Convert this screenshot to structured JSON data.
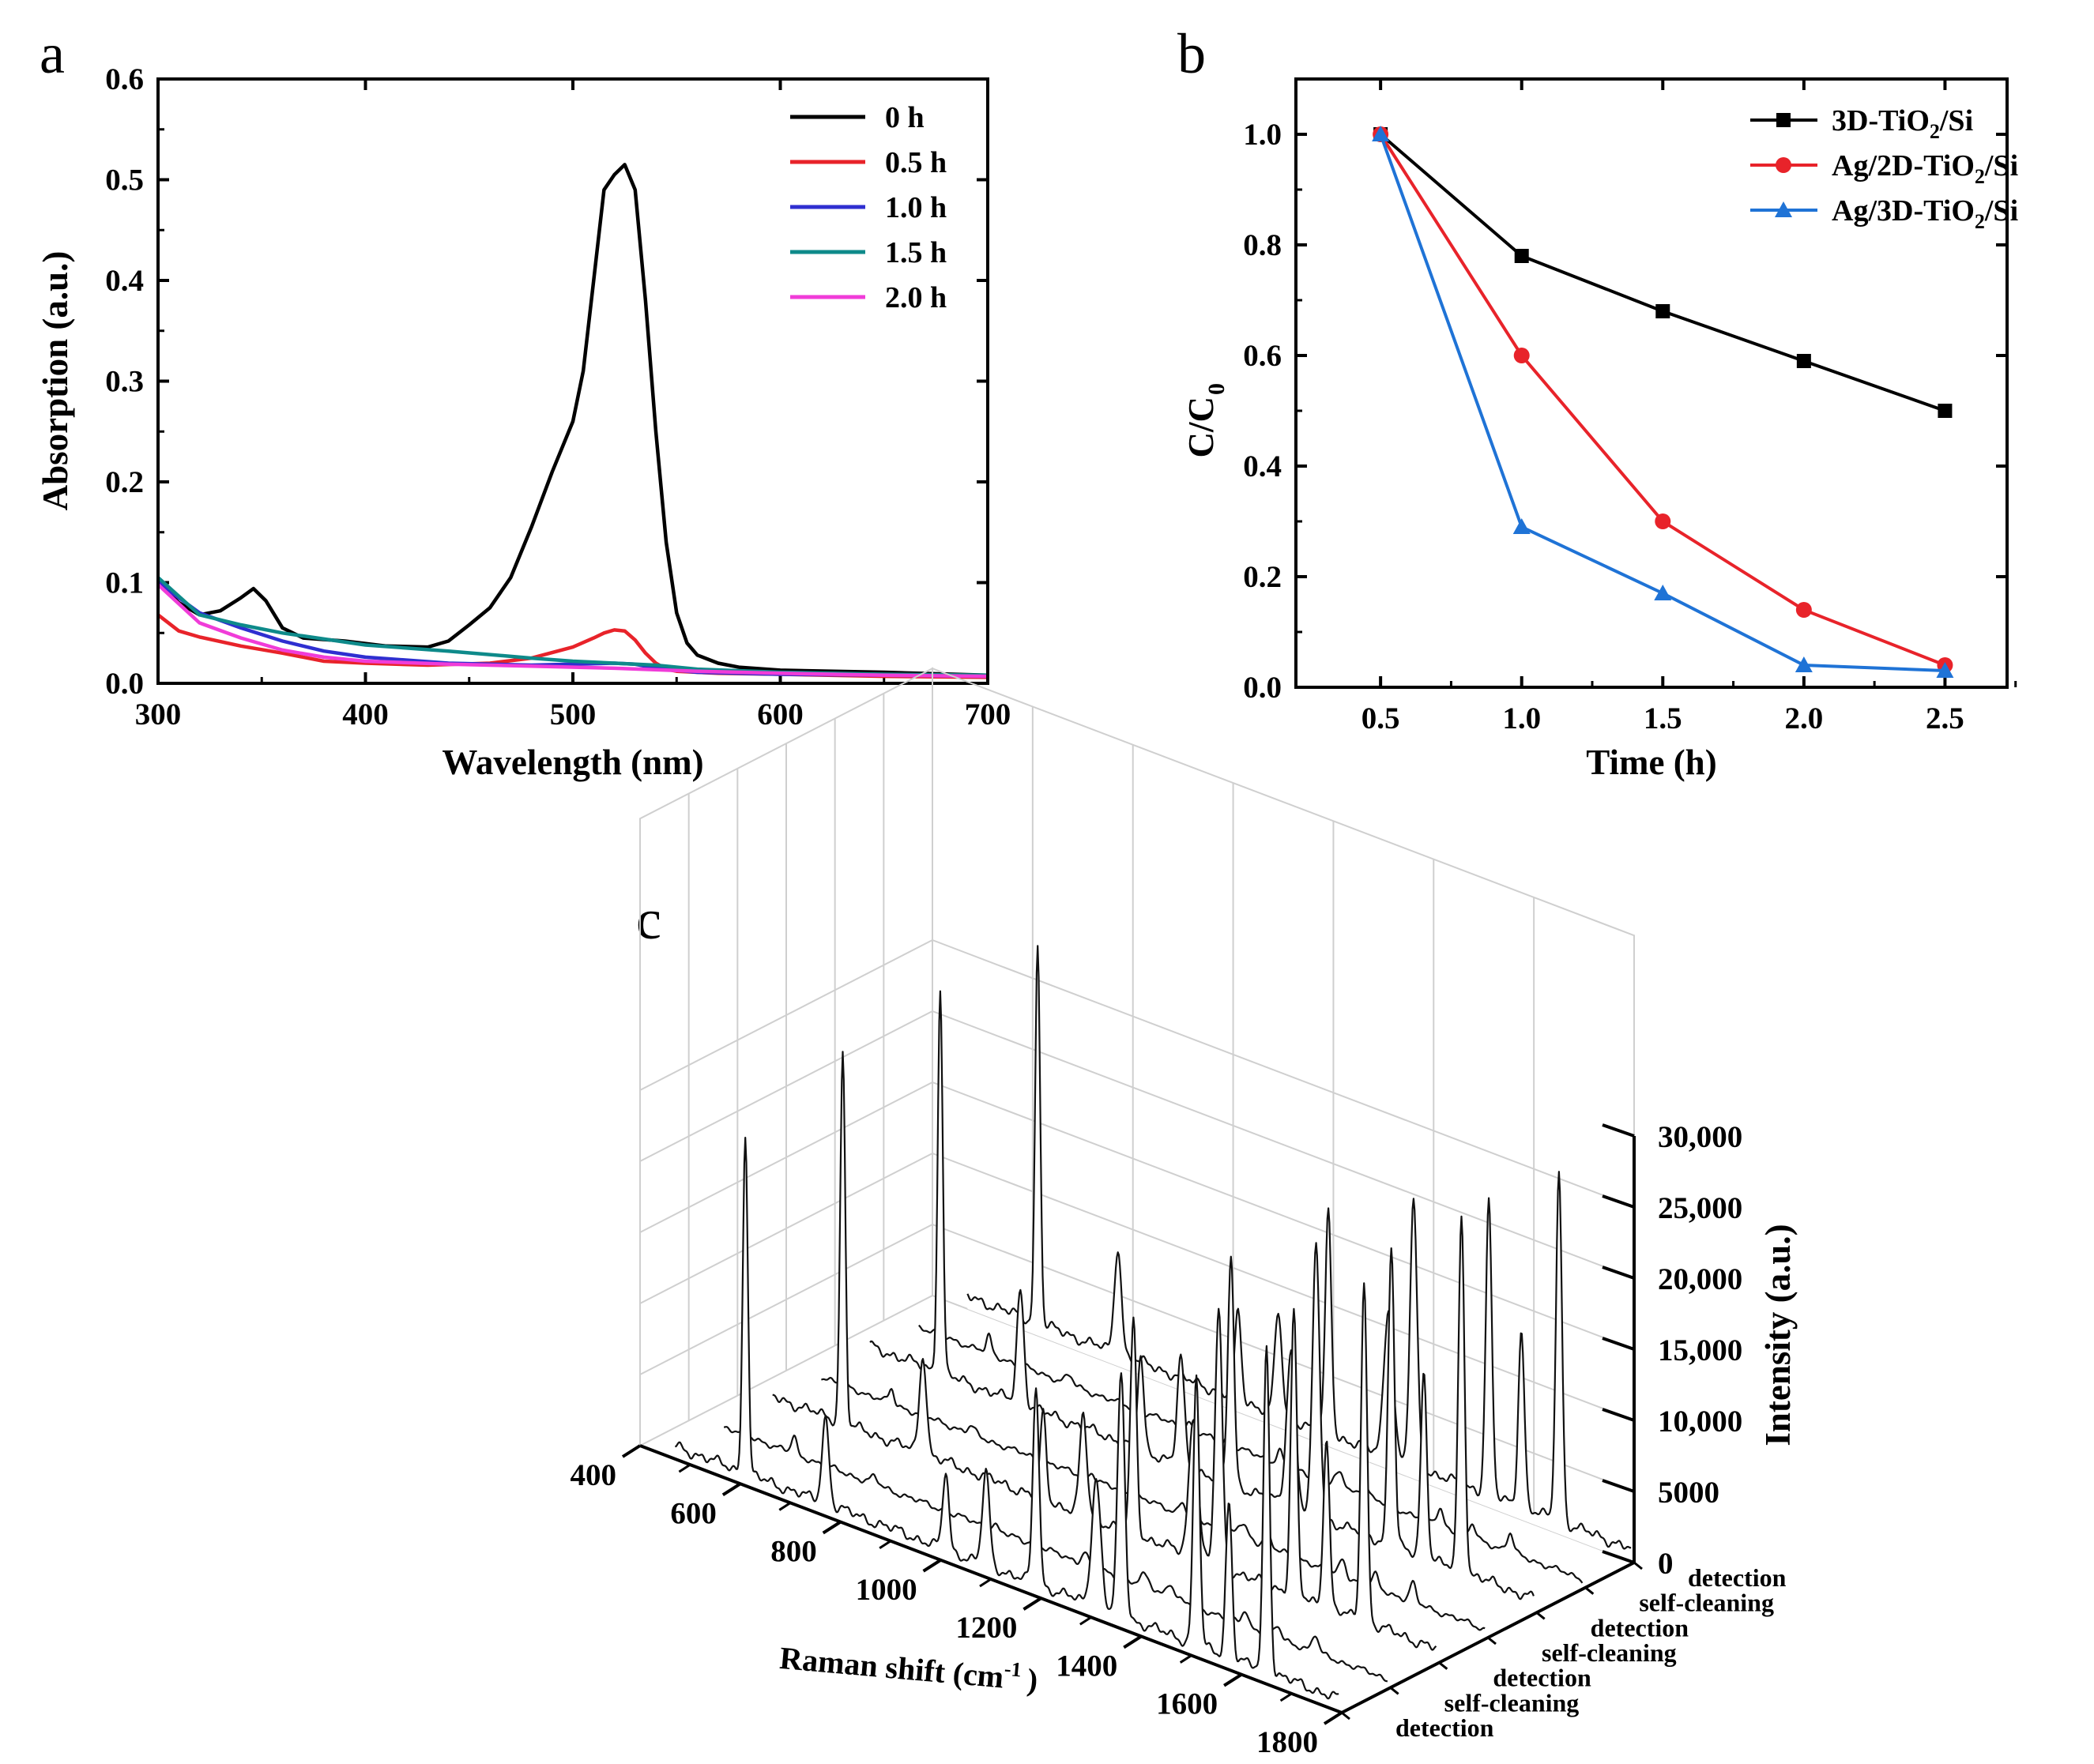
{
  "charts": {
    "a": {
      "letter": "a",
      "chart_data": {
        "type": "line",
        "title": "",
        "xlabel": "Wavelength (nm)",
        "ylabel": "Absorption (a.u.)",
        "xlim": [
          300,
          700
        ],
        "ylim": [
          0,
          0.6
        ],
        "xticks": [
          "300",
          "400",
          "500",
          "600",
          "700"
        ],
        "yticks": [
          "0.0",
          "0.1",
          "0.2",
          "0.3",
          "0.4",
          "0.5",
          "0.6"
        ],
        "legend_position": "top-right",
        "series": [
          {
            "name": "0 h",
            "color": "#000000",
            "x": [
              300,
              310,
              320,
              330,
              340,
              346,
              352,
              360,
              370,
              390,
              410,
              430,
              440,
              450,
              460,
              470,
              480,
              490,
              500,
              505,
              510,
              515,
              520,
              525,
              530,
              535,
              540,
              545,
              550,
              555,
              560,
              570,
              580,
              600,
              650,
              700
            ],
            "y": [
              0.1,
              0.08,
              0.068,
              0.072,
              0.085,
              0.094,
              0.082,
              0.055,
              0.045,
              0.042,
              0.037,
              0.036,
              0.042,
              0.058,
              0.075,
              0.105,
              0.155,
              0.21,
              0.26,
              0.31,
              0.4,
              0.49,
              0.505,
              0.515,
              0.49,
              0.38,
              0.25,
              0.14,
              0.07,
              0.04,
              0.028,
              0.02,
              0.016,
              0.013,
              0.011,
              0.008
            ]
          },
          {
            "name": "0.5 h",
            "color": "#e8232a",
            "x": [
              300,
              310,
              320,
              340,
              360,
              380,
              400,
              430,
              460,
              480,
              500,
              510,
              515,
              520,
              525,
              530,
              535,
              540,
              545,
              550,
              570,
              600,
              650,
              700
            ],
            "y": [
              0.068,
              0.052,
              0.046,
              0.037,
              0.03,
              0.022,
              0.02,
              0.018,
              0.02,
              0.025,
              0.036,
              0.045,
              0.05,
              0.053,
              0.052,
              0.043,
              0.03,
              0.02,
              0.014,
              0.012,
              0.01,
              0.009,
              0.007,
              0.006
            ]
          },
          {
            "name": "1.0 h",
            "color": "#2f2fd0",
            "x": [
              300,
              320,
              340,
              360,
              380,
              400,
              440,
              480,
              500,
              520,
              530,
              540,
              560,
              600,
              650,
              700
            ],
            "y": [
              0.1,
              0.07,
              0.055,
              0.042,
              0.032,
              0.026,
              0.02,
              0.018,
              0.019,
              0.02,
              0.019,
              0.015,
              0.011,
              0.009,
              0.008,
              0.007
            ]
          },
          {
            "name": "1.5 h",
            "color": "#0e8a8a",
            "x": [
              300,
              320,
              340,
              360,
              380,
              400,
              440,
              480,
              500,
              520,
              540,
              560,
              600,
              650,
              700
            ],
            "y": [
              0.105,
              0.068,
              0.058,
              0.05,
              0.044,
              0.038,
              0.032,
              0.025,
              0.022,
              0.02,
              0.018,
              0.014,
              0.011,
              0.009,
              0.008
            ]
          },
          {
            "name": "2.0 h",
            "color": "#f03cd8",
            "x": [
              300,
              320,
              340,
              360,
              380,
              400,
              440,
              480,
              520,
              560,
              600,
              650,
              700
            ],
            "y": [
              0.098,
              0.06,
              0.045,
              0.033,
              0.026,
              0.022,
              0.019,
              0.017,
              0.015,
              0.012,
              0.01,
              0.008,
              0.007
            ]
          }
        ]
      }
    },
    "b": {
      "letter": "b",
      "chart_data": {
        "type": "line",
        "title": "",
        "xlabel": "Time (h)",
        "ylabel": "C/C",
        "ylabel_sub": "0",
        "xlim": [
          0.2,
          2.72
        ],
        "ylim": [
          0,
          1.1
        ],
        "xticks": [
          "0.5",
          "1.0",
          "1.5",
          "2.0",
          "2.5"
        ],
        "yticks": [
          "0.0",
          "0.2",
          "0.4",
          "0.6",
          "0.8",
          "1.0"
        ],
        "legend_position": "top-right",
        "series": [
          {
            "name": "3D-TiO",
            "name_sub": "2",
            "name_tail": "/Si",
            "color": "#000000",
            "marker": "square",
            "x": [
              0.5,
              1.0,
              1.5,
              2.0,
              2.5
            ],
            "y": [
              1.0,
              0.78,
              0.68,
              0.59,
              0.5
            ]
          },
          {
            "name": "Ag/2D-TiO",
            "name_sub": "2",
            "name_tail": "/Si",
            "color": "#e8232a",
            "marker": "circle",
            "x": [
              0.5,
              1.0,
              1.5,
              2.0,
              2.5
            ],
            "y": [
              1.0,
              0.6,
              0.3,
              0.14,
              0.04
            ]
          },
          {
            "name": "Ag/3D-TiO",
            "name_sub": "2",
            "name_tail": "/Si",
            "color": "#1f73d6",
            "marker": "triangle",
            "x": [
              0.5,
              1.0,
              1.5,
              2.0,
              2.5
            ],
            "y": [
              1.0,
              0.29,
              0.17,
              0.04,
              0.03
            ]
          }
        ]
      }
    },
    "c": {
      "letter": "c",
      "chart_data": {
        "type": "line3d",
        "title": "",
        "xlabel": "Raman shift (cm",
        "xlabel_sup": "-1",
        "xlabel_tail": ")",
        "zlabel": "Intensity (a.u.)",
        "xlim": [
          400,
          1800
        ],
        "zlim": [
          0,
          30000
        ],
        "xticks": [
          "400",
          "600",
          "800",
          "1000",
          "1200",
          "1400",
          "1600",
          "1800"
        ],
        "zticks": [
          "0",
          "5000",
          "10,000",
          "15,000",
          "20,000",
          "25,000",
          "30,000"
        ],
        "rows": [
          "detection",
          "self-cleaning",
          "detection",
          "self-cleaning",
          "detection",
          "self-cleaning",
          "detection"
        ],
        "peaks": [
          {
            "x": 610,
            "w": 5,
            "heights": [
              24000,
              1200,
              26000,
              1000,
              27000,
              1200,
              26500
            ]
          },
          {
            "x": 770,
            "w": 7,
            "heights": [
              6000,
              500,
              7000,
              500,
              8000,
              600,
              7500
            ]
          },
          {
            "x": 1010,
            "w": 6,
            "heights": [
              5500,
              400,
              6000,
              500,
              6500,
              500,
              6200
            ]
          },
          {
            "x": 1090,
            "w": 7,
            "heights": [
              6500,
              500,
              7000,
              500,
              7500,
              600,
              7200
            ]
          },
          {
            "x": 1190,
            "w": 6,
            "heights": [
              14000,
              900,
              15000,
              900,
              16000,
              1000,
              15500
            ]
          },
          {
            "x": 1310,
            "w": 9,
            "heights": [
              9000,
              800,
              10000,
              900,
              11000,
              900,
              10500
            ]
          },
          {
            "x": 1360,
            "w": 7,
            "heights": [
              17000,
              1000,
              18000,
              1000,
              19000,
              1100,
              18500
            ]
          },
          {
            "x": 1510,
            "w": 6,
            "heights": [
              19000,
              1100,
              20000,
              1100,
              21000,
              1200,
              20500
            ]
          },
          {
            "x": 1575,
            "w": 6,
            "heights": [
              11000,
              800,
              12000,
              900,
              13000,
              900,
              12500
            ]
          },
          {
            "x": 1650,
            "w": 6,
            "heights": [
              23000,
              1200,
              24000,
              1300,
              25000,
              1300,
              24500
            ]
          }
        ]
      }
    }
  }
}
